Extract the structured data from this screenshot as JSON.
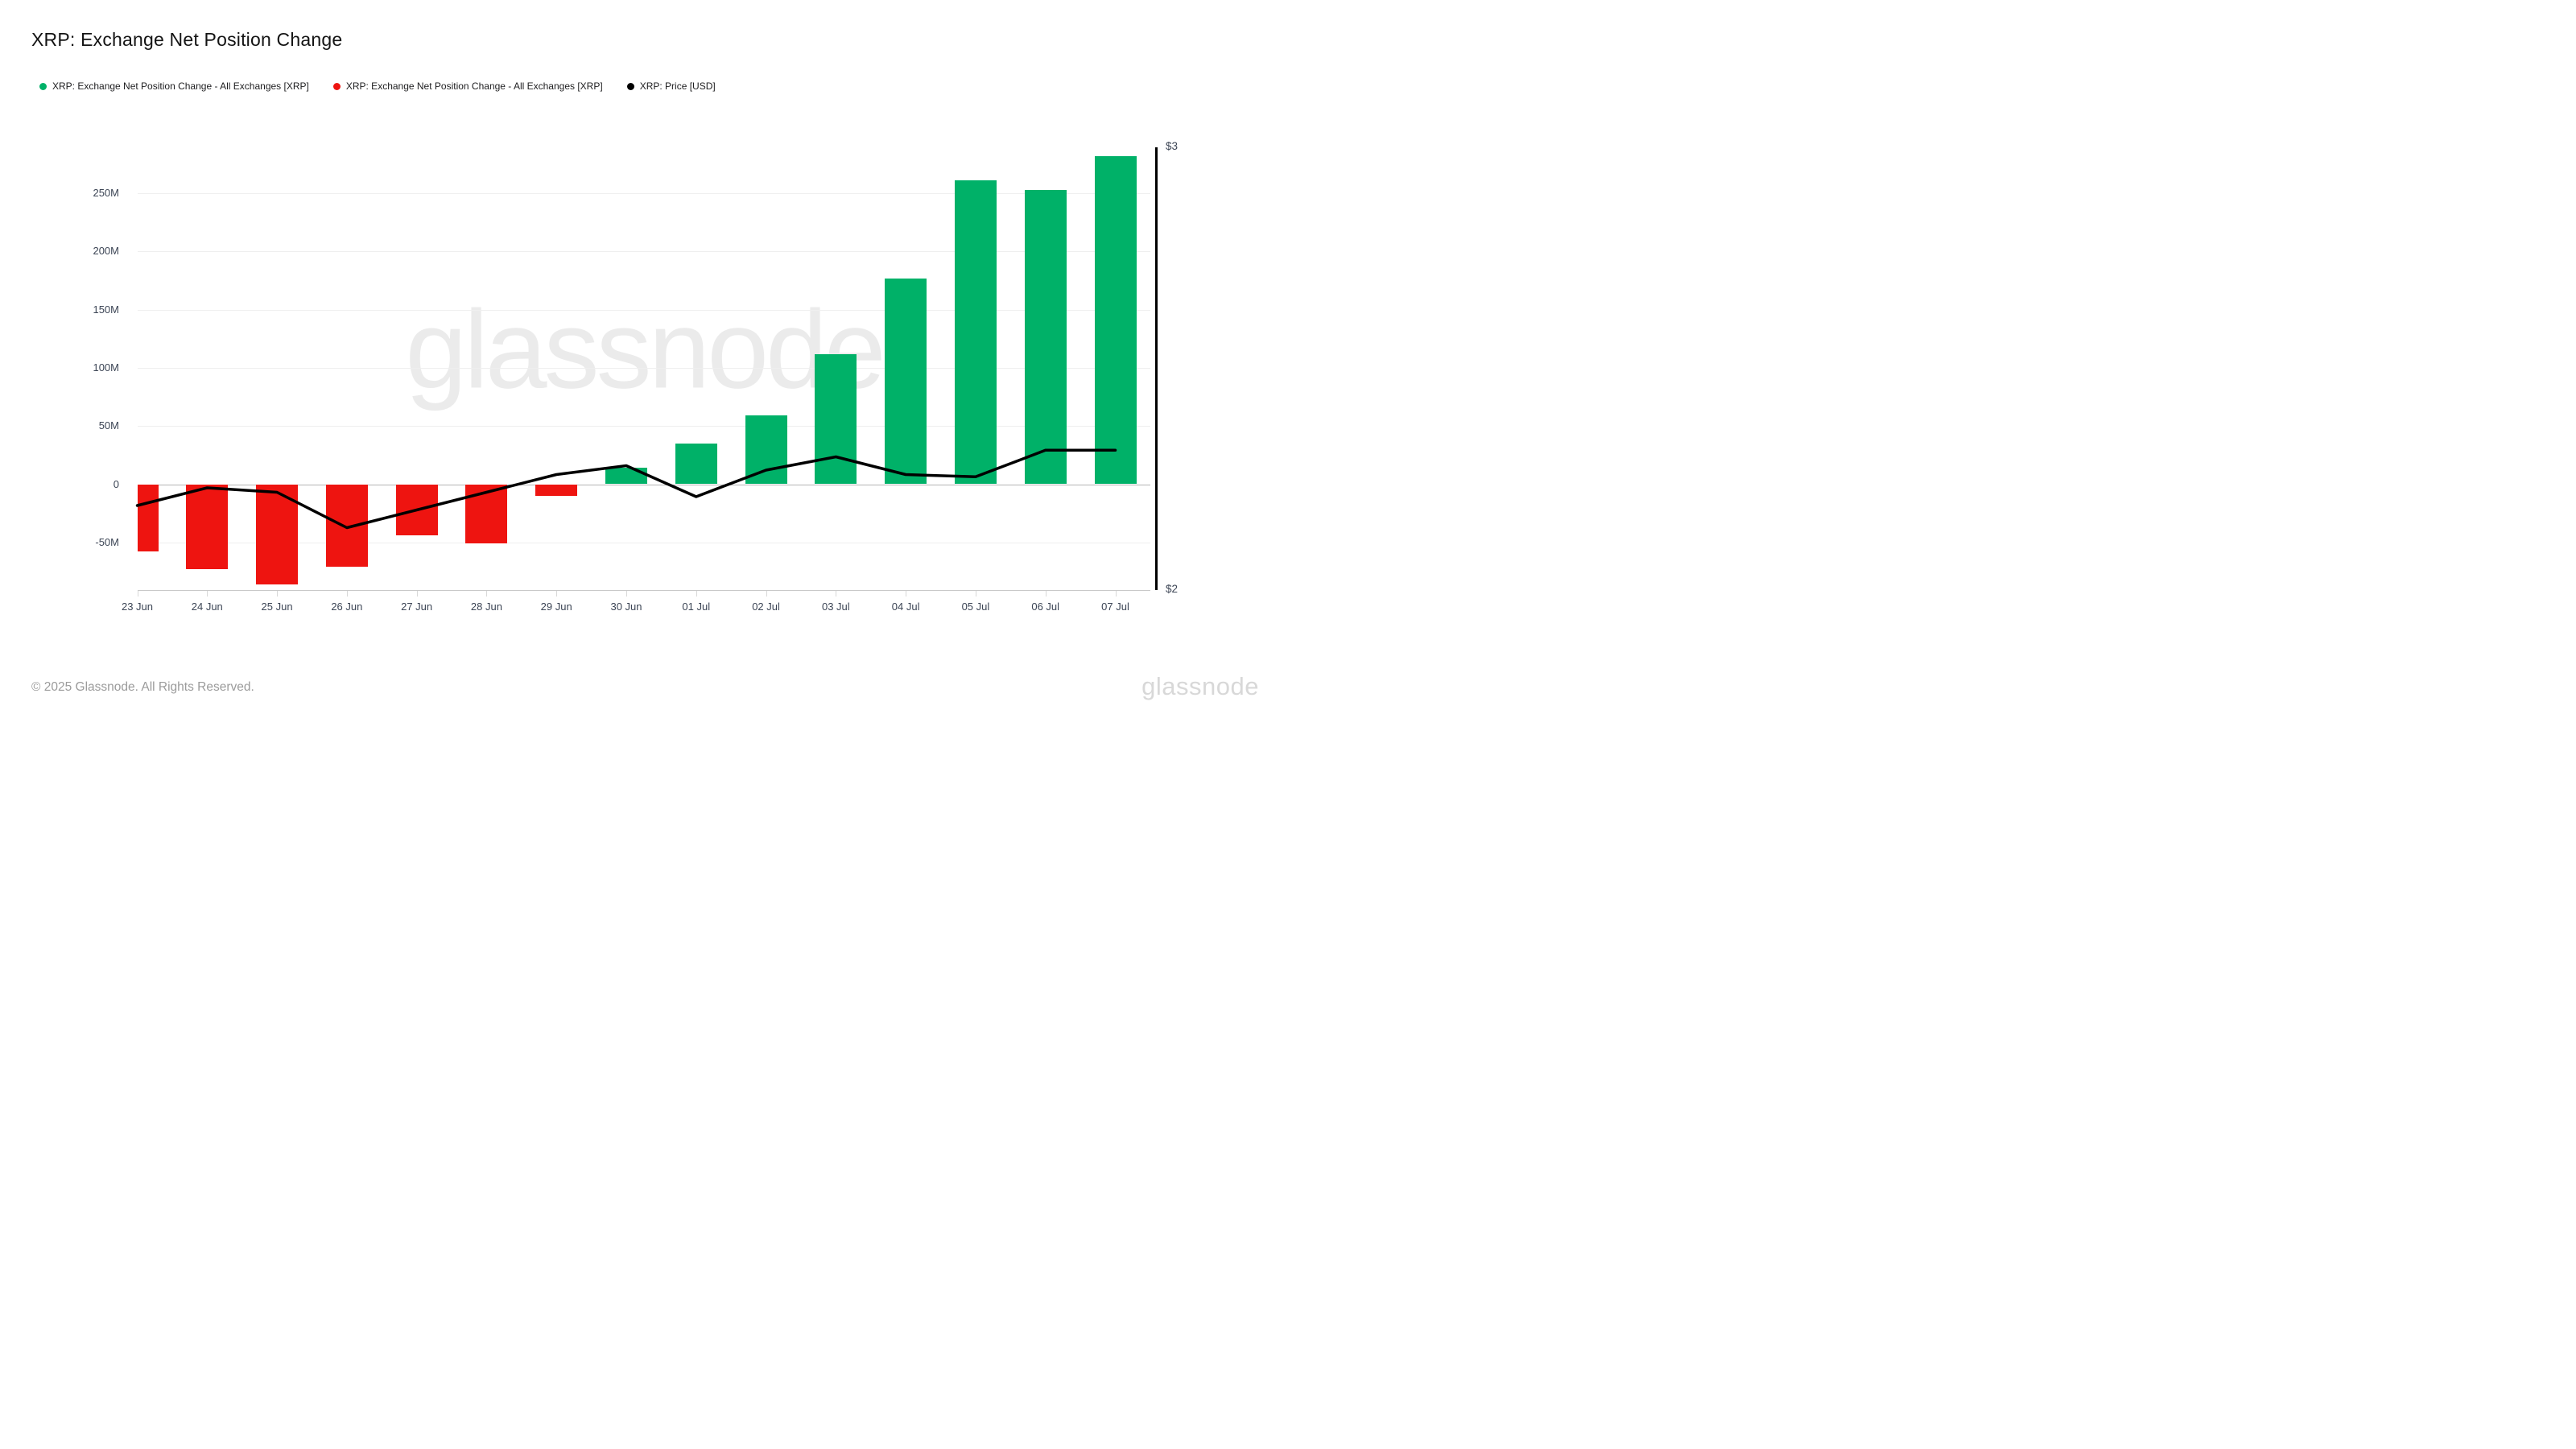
{
  "title": "XRP: Exchange Net Position Change",
  "legend": [
    {
      "label": "XRP: Exchange Net Position Change - All Exchanges [XRP]",
      "color": "#00b168"
    },
    {
      "label": "XRP: Exchange Net Position Change - All Exchanges [XRP]",
      "color": "#ee1410"
    },
    {
      "label": "XRP: Price [USD]",
      "color": "#000000"
    }
  ],
  "watermark": "glassnode",
  "footer": {
    "copyright": "© 2025 Glassnode. All Rights Reserved.",
    "brand": "glassnode"
  },
  "chart_data": {
    "type": "bar",
    "title": "XRP: Exchange Net Position Change",
    "categories": [
      "23 Jun",
      "24 Jun",
      "25 Jun",
      "26 Jun",
      "27 Jun",
      "28 Jun",
      "29 Jun",
      "30 Jun",
      "01 Jul",
      "02 Jul",
      "03 Jul",
      "04 Jul",
      "05 Jul",
      "06 Jul",
      "07 Jul"
    ],
    "series": [
      {
        "name": "XRP: Exchange Net Position Change - All Exchanges [XRP]",
        "type": "bar",
        "unit": "XRP millions",
        "values_millions": [
          -58,
          -73,
          -86,
          -71,
          -44,
          -51,
          -10,
          14,
          35,
          59,
          112,
          177,
          261,
          253,
          282
        ]
      },
      {
        "name": "XRP: Price [USD]",
        "type": "line",
        "unit": "USD",
        "values": [
          2.19,
          2.23,
          2.22,
          2.14,
          2.18,
          2.22,
          2.26,
          2.28,
          2.21,
          2.27,
          2.3,
          2.26,
          2.255,
          2.315,
          2.315
        ]
      }
    ],
    "left_axis": {
      "tick_labels": [
        "250M",
        "200M",
        "150M",
        "100M",
        "50M",
        "0",
        "-50M"
      ],
      "tick_values_millions": [
        250,
        200,
        150,
        100,
        50,
        0,
        -50
      ],
      "ylim_millions": [
        -90,
        292
      ]
    },
    "right_axis": {
      "tick_labels": [
        "$3",
        "$2"
      ],
      "tick_values": [
        3,
        2
      ],
      "ylim": [
        2,
        3
      ]
    },
    "grid": "horizontal",
    "legend_position": "top-left",
    "colors": {
      "positive": "#00b168",
      "negative": "#ee1410",
      "price_line": "#000000"
    }
  }
}
